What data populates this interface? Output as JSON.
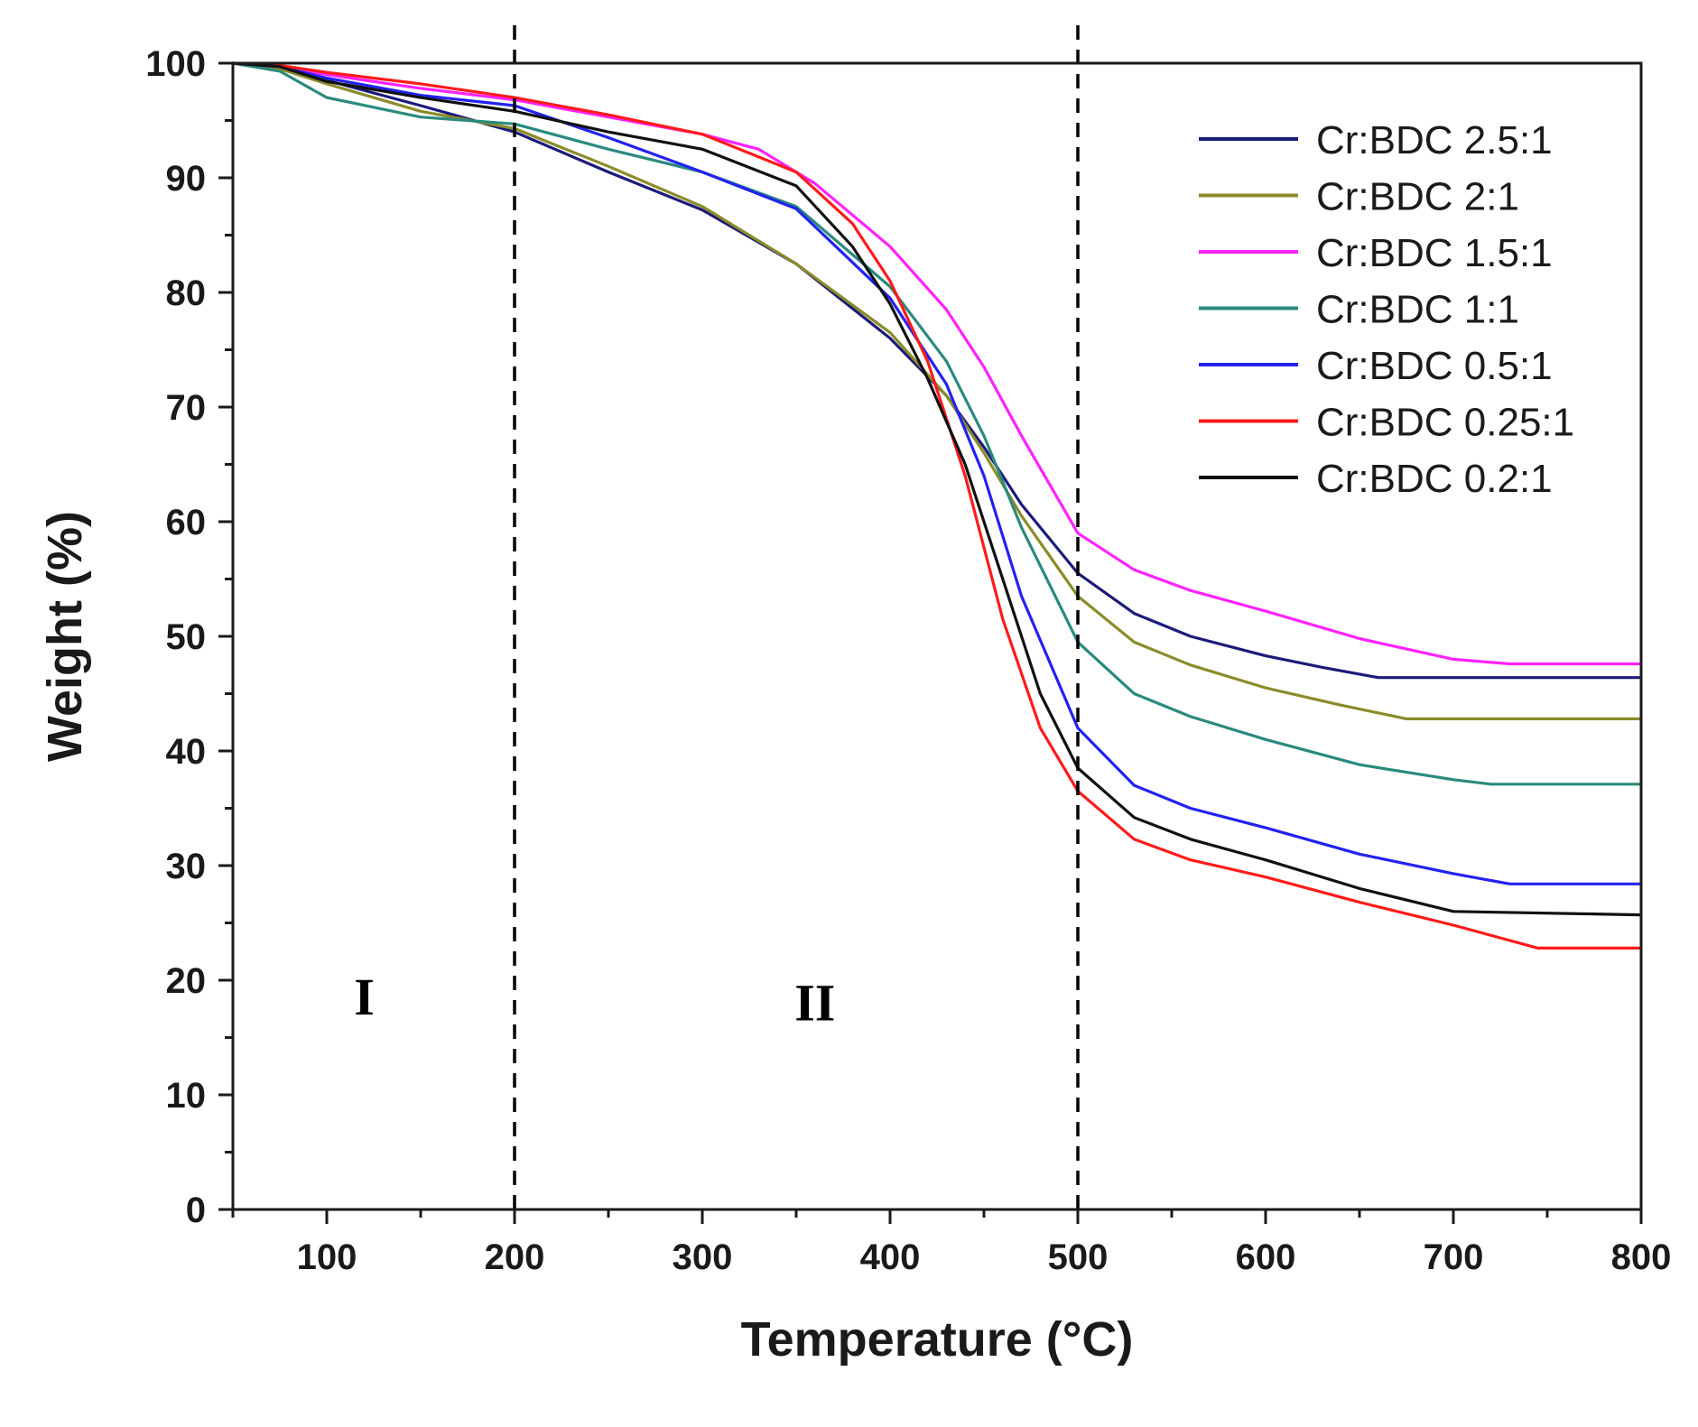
{
  "chart_data": {
    "type": "line",
    "xlabel": "Temperature (°C)",
    "ylabel": "Weight (%)",
    "xlim": [
      50,
      800
    ],
    "ylim": [
      0,
      100
    ],
    "xticks": [
      100,
      200,
      300,
      400,
      500,
      600,
      700,
      800
    ],
    "yticks": [
      0,
      10,
      20,
      30,
      40,
      50,
      60,
      70,
      80,
      90,
      100
    ],
    "grid": false,
    "legend_position": "top-right",
    "vlines": [
      200,
      500
    ],
    "region_labels": [
      {
        "text": "I",
        "x": 120,
        "y": 17
      },
      {
        "text": "II",
        "x": 360,
        "y": 16.5
      }
    ],
    "series": [
      {
        "name": "Cr:BDC 2.5:1",
        "color": "#1b1b7a",
        "points": [
          [
            50,
            100
          ],
          [
            75,
            99.6
          ],
          [
            100,
            98.5
          ],
          [
            150,
            96.3
          ],
          [
            200,
            94
          ],
          [
            250,
            90.5
          ],
          [
            300,
            87.2
          ],
          [
            350,
            82.5
          ],
          [
            400,
            76
          ],
          [
            430,
            71
          ],
          [
            450,
            66.5
          ],
          [
            470,
            61.5
          ],
          [
            500,
            55.5
          ],
          [
            530,
            52
          ],
          [
            560,
            50
          ],
          [
            600,
            48.3
          ],
          [
            630,
            47.3
          ],
          [
            660,
            46.4
          ],
          [
            700,
            46.4
          ],
          [
            800,
            46.4
          ]
        ]
      },
      {
        "name": "Cr:BDC 2:1",
        "color": "#8b8b2a",
        "points": [
          [
            50,
            100
          ],
          [
            75,
            99.5
          ],
          [
            100,
            98.2
          ],
          [
            150,
            95.8
          ],
          [
            200,
            94.3
          ],
          [
            250,
            91
          ],
          [
            300,
            87.5
          ],
          [
            350,
            82.5
          ],
          [
            400,
            76.5
          ],
          [
            430,
            71
          ],
          [
            450,
            66
          ],
          [
            470,
            60.5
          ],
          [
            500,
            53.5
          ],
          [
            530,
            49.5
          ],
          [
            560,
            47.5
          ],
          [
            600,
            45.5
          ],
          [
            640,
            44
          ],
          [
            675,
            42.8
          ],
          [
            700,
            42.8
          ],
          [
            800,
            42.8
          ]
        ]
      },
      {
        "name": "Cr:BDC 1.5:1",
        "color": "#ff22ff",
        "points": [
          [
            50,
            100
          ],
          [
            75,
            99.7
          ],
          [
            100,
            99
          ],
          [
            150,
            97.8
          ],
          [
            200,
            96.8
          ],
          [
            250,
            95.3
          ],
          [
            300,
            93.8
          ],
          [
            330,
            92.5
          ],
          [
            360,
            89.5
          ],
          [
            400,
            84
          ],
          [
            430,
            78.5
          ],
          [
            450,
            73.5
          ],
          [
            470,
            67.5
          ],
          [
            500,
            59
          ],
          [
            530,
            55.8
          ],
          [
            560,
            54
          ],
          [
            600,
            52.2
          ],
          [
            650,
            49.8
          ],
          [
            700,
            48
          ],
          [
            730,
            47.6
          ],
          [
            800,
            47.6
          ]
        ]
      },
      {
        "name": "Cr:BDC 1:1",
        "color": "#2a8a7e",
        "points": [
          [
            50,
            100
          ],
          [
            75,
            99.3
          ],
          [
            100,
            97
          ],
          [
            150,
            95.3
          ],
          [
            200,
            94.7
          ],
          [
            250,
            92.5
          ],
          [
            300,
            90.5
          ],
          [
            350,
            87.5
          ],
          [
            400,
            80.5
          ],
          [
            430,
            74
          ],
          [
            450,
            67.5
          ],
          [
            470,
            59.5
          ],
          [
            500,
            49.5
          ],
          [
            530,
            45
          ],
          [
            560,
            43
          ],
          [
            600,
            41
          ],
          [
            650,
            38.8
          ],
          [
            700,
            37.5
          ],
          [
            720,
            37.1
          ],
          [
            800,
            37.1
          ]
        ]
      },
      {
        "name": "Cr:BDC 0.5:1",
        "color": "#2222f0",
        "points": [
          [
            50,
            100
          ],
          [
            75,
            99.7
          ],
          [
            100,
            98.7
          ],
          [
            150,
            97.2
          ],
          [
            200,
            96.3
          ],
          [
            250,
            93.5
          ],
          [
            300,
            90.5
          ],
          [
            350,
            87.3
          ],
          [
            400,
            79.5
          ],
          [
            430,
            72
          ],
          [
            450,
            64
          ],
          [
            470,
            53.5
          ],
          [
            500,
            42
          ],
          [
            530,
            37
          ],
          [
            560,
            35
          ],
          [
            600,
            33.3
          ],
          [
            650,
            31
          ],
          [
            700,
            29.3
          ],
          [
            730,
            28.4
          ],
          [
            800,
            28.4
          ]
        ]
      },
      {
        "name": "Cr:BDC 0.25:1",
        "color": "#ff1a1a",
        "points": [
          [
            50,
            100
          ],
          [
            75,
            99.8
          ],
          [
            100,
            99.2
          ],
          [
            150,
            98.2
          ],
          [
            200,
            97
          ],
          [
            250,
            95.5
          ],
          [
            300,
            93.8
          ],
          [
            350,
            90.5
          ],
          [
            380,
            86
          ],
          [
            400,
            81
          ],
          [
            420,
            74
          ],
          [
            440,
            64
          ],
          [
            460,
            51.5
          ],
          [
            480,
            42
          ],
          [
            500,
            36.5
          ],
          [
            530,
            32.3
          ],
          [
            560,
            30.5
          ],
          [
            600,
            29
          ],
          [
            650,
            26.8
          ],
          [
            700,
            24.8
          ],
          [
            745,
            22.8
          ],
          [
            800,
            22.8
          ]
        ]
      },
      {
        "name": "Cr:BDC 0.2:1",
        "color": "#111111",
        "points": [
          [
            50,
            100
          ],
          [
            75,
            99.7
          ],
          [
            100,
            98.4
          ],
          [
            150,
            97
          ],
          [
            200,
            95.8
          ],
          [
            250,
            94
          ],
          [
            300,
            92.5
          ],
          [
            350,
            89.3
          ],
          [
            380,
            84
          ],
          [
            400,
            79
          ],
          [
            420,
            72.5
          ],
          [
            440,
            65
          ],
          [
            460,
            55
          ],
          [
            480,
            45
          ],
          [
            500,
            38.5
          ],
          [
            530,
            34.2
          ],
          [
            560,
            32.3
          ],
          [
            600,
            30.5
          ],
          [
            650,
            28
          ],
          [
            700,
            26
          ],
          [
            800,
            25.7
          ]
        ]
      }
    ]
  }
}
